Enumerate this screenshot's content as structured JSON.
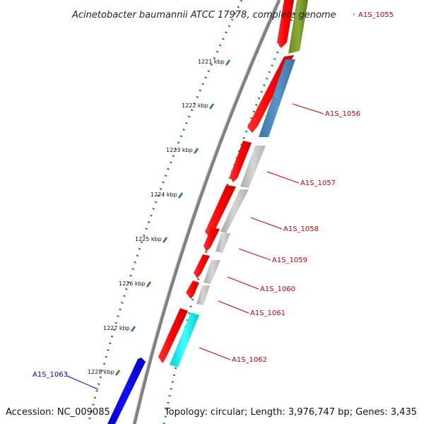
{
  "title": "Acinetobacter baumannii ATCC 17978, complete genome",
  "footer": {
    "accession": "Accession: NC_009085",
    "stats": "Topology: circular; Length: 3,976,747 bp; Genes: 3,435"
  },
  "ticks": [
    "1221 kbp",
    "1222 kbp",
    "1223 kbp",
    "1224 kbp",
    "1225 kbp",
    "1226 kbp",
    "1227 kbp",
    "1228 kbp"
  ],
  "gene_labels": [
    {
      "text": "A1S_1055",
      "color": "#cc0000"
    },
    {
      "text": "A1S_1056",
      "color": "#cc0000"
    },
    {
      "text": "A1S_1057",
      "color": "#cc0000"
    },
    {
      "text": "A1S_1058",
      "color": "#cc0000"
    },
    {
      "text": "A1S_1059",
      "color": "#cc0000"
    },
    {
      "text": "A1S_1060",
      "color": "#cc0000"
    },
    {
      "text": "A1S_1061",
      "color": "#cc0000"
    },
    {
      "text": "A1S_1062",
      "color": "#cc0000"
    },
    {
      "text": "A1S_1063",
      "color": "#0000cc"
    }
  ],
  "colors": {
    "forward_cds": "#ff0000",
    "reverse_cds_blue": "#0000ee",
    "backbone": "#808080",
    "tick_mark": "#228822",
    "dot_track": "#228822",
    "olive_feature": "#7a9a2a",
    "steelblue_feature": "#4a86b8",
    "gray_feature": "#c0c0c0",
    "cyan_feature": "#00e8ee"
  }
}
